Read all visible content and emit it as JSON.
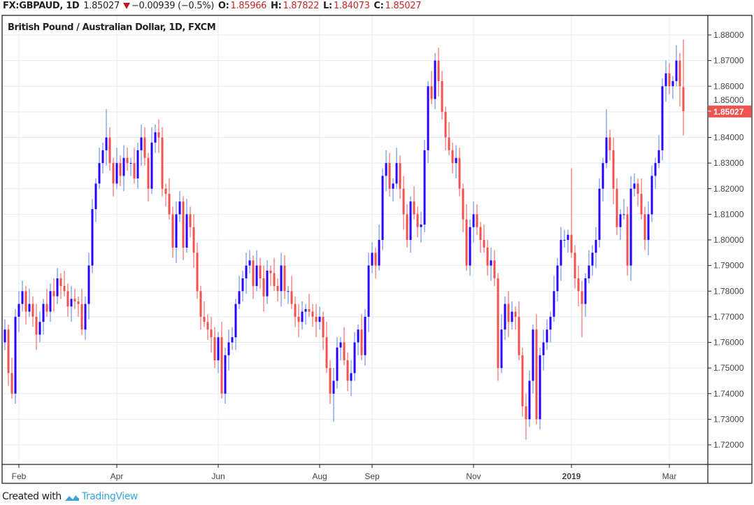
{
  "header": {
    "symbol": "FX:GBPAUD, 1D",
    "last": "1.85027",
    "change": "−0.00939 (−0.5%)",
    "o_label": "O:",
    "o": "1.85966",
    "h_label": "H:",
    "h": "1.87822",
    "l_label": "L:",
    "l": "1.84073",
    "c_label": "C:",
    "c": "1.85027",
    "direction_icon": "triangle-down-icon"
  },
  "footer": {
    "created_with": "Created with",
    "brand": "TradingView",
    "logo_icon": "tradingview-logo-icon"
  },
  "colors": {
    "up_body": "#2a00ff",
    "up_wick": "#4f7fe6",
    "down": "#ef5350",
    "grid": "#e1ecf2",
    "price_tag": "#ef5350"
  },
  "chart_data": {
    "type": "candlestick",
    "title": "British Pound / Australian Dollar, 1D, FXCM",
    "ylim": [
      1.715,
      1.882
    ],
    "y_ticks": [
      "1.72000",
      "1.73000",
      "1.74000",
      "1.75000",
      "1.76000",
      "1.77000",
      "1.78000",
      "1.79000",
      "1.80000",
      "1.81000",
      "1.82000",
      "1.83000",
      "1.84000",
      "1.85000",
      "1.86000",
      "1.87000",
      "1.88000"
    ],
    "x_ticks": [
      {
        "label": "Feb",
        "index": 4
      },
      {
        "label": "Apr",
        "index": 32
      },
      {
        "label": "Jun",
        "index": 61
      },
      {
        "label": "Aug",
        "index": 90
      },
      {
        "label": "Sep",
        "index": 105
      },
      {
        "label": "Nov",
        "index": 134
      },
      {
        "label": "2019",
        "index": 162,
        "bold": true
      },
      {
        "label": "Mar",
        "index": 190
      }
    ],
    "last_price_label": "1.85027",
    "last_price": 1.85027,
    "grid": true,
    "ohlc": [
      [
        1.76,
        1.769,
        1.757,
        1.765
      ],
      [
        1.765,
        1.767,
        1.743,
        1.748
      ],
      [
        1.748,
        1.754,
        1.738,
        1.74
      ],
      [
        1.74,
        1.773,
        1.736,
        1.77
      ],
      [
        1.77,
        1.78,
        1.764,
        1.775
      ],
      [
        1.775,
        1.784,
        1.772,
        1.78
      ],
      [
        1.78,
        1.782,
        1.767,
        1.772
      ],
      [
        1.772,
        1.781,
        1.77,
        1.775
      ],
      [
        1.775,
        1.778,
        1.766,
        1.77
      ],
      [
        1.77,
        1.775,
        1.757,
        1.763
      ],
      [
        1.763,
        1.772,
        1.76,
        1.768
      ],
      [
        1.768,
        1.777,
        1.763,
        1.775
      ],
      [
        1.775,
        1.781,
        1.77,
        1.772
      ],
      [
        1.772,
        1.783,
        1.768,
        1.78
      ],
      [
        1.78,
        1.785,
        1.772,
        1.778
      ],
      [
        1.778,
        1.789,
        1.775,
        1.785
      ],
      [
        1.785,
        1.787,
        1.777,
        1.782
      ],
      [
        1.782,
        1.788,
        1.778,
        1.78
      ],
      [
        1.78,
        1.783,
        1.77,
        1.774
      ],
      [
        1.774,
        1.782,
        1.768,
        1.777
      ],
      [
        1.777,
        1.781,
        1.773,
        1.776
      ],
      [
        1.776,
        1.778,
        1.77,
        1.775
      ],
      [
        1.775,
        1.781,
        1.763,
        1.765
      ],
      [
        1.765,
        1.778,
        1.761,
        1.775
      ],
      [
        1.775,
        1.795,
        1.769,
        1.79
      ],
      [
        1.79,
        1.816,
        1.787,
        1.812
      ],
      [
        1.812,
        1.824,
        1.807,
        1.822
      ],
      [
        1.822,
        1.836,
        1.82,
        1.83
      ],
      [
        1.83,
        1.838,
        1.826,
        1.835
      ],
      [
        1.835,
        1.851,
        1.829,
        1.84
      ],
      [
        1.84,
        1.844,
        1.827,
        1.83
      ],
      [
        1.83,
        1.832,
        1.817,
        1.822
      ],
      [
        1.822,
        1.836,
        1.82,
        1.83
      ],
      [
        1.83,
        1.833,
        1.821,
        1.825
      ],
      [
        1.825,
        1.837,
        1.819,
        1.832
      ],
      [
        1.832,
        1.836,
        1.827,
        1.83
      ],
      [
        1.83,
        1.832,
        1.825,
        1.83
      ],
      [
        1.83,
        1.836,
        1.822,
        1.824
      ],
      [
        1.824,
        1.838,
        1.82,
        1.835
      ],
      [
        1.835,
        1.845,
        1.829,
        1.84
      ],
      [
        1.84,
        1.844,
        1.829,
        1.832
      ],
      [
        1.832,
        1.834,
        1.815,
        1.82
      ],
      [
        1.82,
        1.844,
        1.818,
        1.838
      ],
      [
        1.838,
        1.845,
        1.834,
        1.842
      ],
      [
        1.842,
        1.847,
        1.834,
        1.84
      ],
      [
        1.84,
        1.844,
        1.817,
        1.82
      ],
      [
        1.82,
        1.822,
        1.813,
        1.818
      ],
      [
        1.818,
        1.824,
        1.808,
        1.81
      ],
      [
        1.81,
        1.813,
        1.793,
        1.797
      ],
      [
        1.797,
        1.815,
        1.791,
        1.81
      ],
      [
        1.81,
        1.819,
        1.807,
        1.815
      ],
      [
        1.815,
        1.817,
        1.792,
        1.797
      ],
      [
        1.797,
        1.816,
        1.795,
        1.81
      ],
      [
        1.81,
        1.813,
        1.801,
        1.805
      ],
      [
        1.805,
        1.81,
        1.789,
        1.795
      ],
      [
        1.795,
        1.799,
        1.777,
        1.78
      ],
      [
        1.78,
        1.782,
        1.765,
        1.77
      ],
      [
        1.77,
        1.776,
        1.766,
        1.768
      ],
      [
        1.768,
        1.771,
        1.761,
        1.765
      ],
      [
        1.765,
        1.77,
        1.756,
        1.762
      ],
      [
        1.762,
        1.766,
        1.75,
        1.753
      ],
      [
        1.753,
        1.764,
        1.748,
        1.762
      ],
      [
        1.762,
        1.768,
        1.738,
        1.74
      ],
      [
        1.74,
        1.758,
        1.736,
        1.755
      ],
      [
        1.755,
        1.765,
        1.749,
        1.76
      ],
      [
        1.76,
        1.766,
        1.757,
        1.762
      ],
      [
        1.762,
        1.777,
        1.757,
        1.775
      ],
      [
        1.775,
        1.786,
        1.773,
        1.78
      ],
      [
        1.78,
        1.788,
        1.776,
        1.785
      ],
      [
        1.785,
        1.795,
        1.779,
        1.79
      ],
      [
        1.79,
        1.796,
        1.787,
        1.792
      ],
      [
        1.792,
        1.794,
        1.777,
        1.782
      ],
      [
        1.782,
        1.796,
        1.78,
        1.79
      ],
      [
        1.79,
        1.793,
        1.781,
        1.785
      ],
      [
        1.785,
        1.79,
        1.772,
        1.778
      ],
      [
        1.778,
        1.792,
        1.775,
        1.788
      ],
      [
        1.788,
        1.79,
        1.782,
        1.787
      ],
      [
        1.787,
        1.793,
        1.78,
        1.782
      ],
      [
        1.782,
        1.785,
        1.776,
        1.78
      ],
      [
        1.78,
        1.795,
        1.774,
        1.79
      ],
      [
        1.79,
        1.794,
        1.777,
        1.78
      ],
      [
        1.78,
        1.782,
        1.775,
        1.78
      ],
      [
        1.78,
        1.786,
        1.773,
        1.775
      ],
      [
        1.775,
        1.778,
        1.766,
        1.77
      ],
      [
        1.77,
        1.775,
        1.762,
        1.768
      ],
      [
        1.768,
        1.776,
        1.765,
        1.772
      ],
      [
        1.772,
        1.775,
        1.767,
        1.773
      ],
      [
        1.773,
        1.779,
        1.77,
        1.772
      ],
      [
        1.772,
        1.775,
        1.766,
        1.77
      ],
      [
        1.77,
        1.775,
        1.762,
        1.768
      ],
      [
        1.768,
        1.774,
        1.765,
        1.77
      ],
      [
        1.77,
        1.772,
        1.757,
        1.762
      ],
      [
        1.762,
        1.768,
        1.748,
        1.75
      ],
      [
        1.75,
        1.753,
        1.736,
        1.74
      ],
      [
        1.74,
        1.75,
        1.729,
        1.745
      ],
      [
        1.745,
        1.762,
        1.742,
        1.758
      ],
      [
        1.758,
        1.762,
        1.753,
        1.76
      ],
      [
        1.76,
        1.766,
        1.751,
        1.753
      ],
      [
        1.753,
        1.756,
        1.741,
        1.745
      ],
      [
        1.745,
        1.753,
        1.739,
        1.748
      ],
      [
        1.748,
        1.764,
        1.745,
        1.76
      ],
      [
        1.76,
        1.767,
        1.755,
        1.765
      ],
      [
        1.765,
        1.771,
        1.753,
        1.755
      ],
      [
        1.755,
        1.773,
        1.751,
        1.77
      ],
      [
        1.77,
        1.795,
        1.764,
        1.79
      ],
      [
        1.79,
        1.799,
        1.787,
        1.795
      ],
      [
        1.795,
        1.797,
        1.785,
        1.79
      ],
      [
        1.79,
        1.806,
        1.788,
        1.8
      ],
      [
        1.8,
        1.828,
        1.796,
        1.825
      ],
      [
        1.825,
        1.835,
        1.819,
        1.83
      ],
      [
        1.83,
        1.834,
        1.817,
        1.82
      ],
      [
        1.82,
        1.824,
        1.815,
        1.822
      ],
      [
        1.822,
        1.836,
        1.82,
        1.83
      ],
      [
        1.83,
        1.833,
        1.816,
        1.82
      ],
      [
        1.82,
        1.825,
        1.804,
        1.81
      ],
      [
        1.81,
        1.814,
        1.797,
        1.8
      ],
      [
        1.8,
        1.817,
        1.795,
        1.815
      ],
      [
        1.815,
        1.821,
        1.808,
        1.81
      ],
      [
        1.81,
        1.813,
        1.801,
        1.805
      ],
      [
        1.805,
        1.811,
        1.799,
        1.806
      ],
      [
        1.806,
        1.839,
        1.803,
        1.835
      ],
      [
        1.835,
        1.862,
        1.83,
        1.86
      ],
      [
        1.86,
        1.866,
        1.853,
        1.855
      ],
      [
        1.855,
        1.873,
        1.851,
        1.87
      ],
      [
        1.87,
        1.875,
        1.856,
        1.862
      ],
      [
        1.862,
        1.866,
        1.847,
        1.85
      ],
      [
        1.85,
        1.852,
        1.835,
        1.84
      ],
      [
        1.84,
        1.846,
        1.833,
        1.835
      ],
      [
        1.835,
        1.838,
        1.826,
        1.83
      ],
      [
        1.83,
        1.837,
        1.824,
        1.832
      ],
      [
        1.832,
        1.836,
        1.817,
        1.82
      ],
      [
        1.82,
        1.822,
        1.803,
        1.808
      ],
      [
        1.808,
        1.814,
        1.788,
        1.79
      ],
      [
        1.79,
        1.808,
        1.786,
        1.805
      ],
      [
        1.805,
        1.815,
        1.799,
        1.81
      ],
      [
        1.81,
        1.814,
        1.802,
        1.805
      ],
      [
        1.805,
        1.807,
        1.795,
        1.8
      ],
      [
        1.8,
        1.806,
        1.795,
        1.797
      ],
      [
        1.797,
        1.8,
        1.786,
        1.79
      ],
      [
        1.79,
        1.797,
        1.784,
        1.792
      ],
      [
        1.792,
        1.796,
        1.782,
        1.785
      ],
      [
        1.785,
        1.787,
        1.745,
        1.75
      ],
      [
        1.75,
        1.771,
        1.748,
        1.765
      ],
      [
        1.765,
        1.778,
        1.761,
        1.775
      ],
      [
        1.775,
        1.78,
        1.762,
        1.768
      ],
      [
        1.768,
        1.776,
        1.765,
        1.772
      ],
      [
        1.772,
        1.774,
        1.765,
        1.77
      ],
      [
        1.77,
        1.776,
        1.753,
        1.755
      ],
      [
        1.755,
        1.758,
        1.731,
        1.735
      ],
      [
        1.735,
        1.74,
        1.722,
        1.73
      ],
      [
        1.73,
        1.749,
        1.727,
        1.745
      ],
      [
        1.745,
        1.767,
        1.74,
        1.765
      ],
      [
        1.765,
        1.771,
        1.728,
        1.73
      ],
      [
        1.73,
        1.758,
        1.726,
        1.755
      ],
      [
        1.755,
        1.765,
        1.749,
        1.76
      ],
      [
        1.76,
        1.769,
        1.757,
        1.765
      ],
      [
        1.765,
        1.772,
        1.76,
        1.77
      ],
      [
        1.77,
        1.786,
        1.768,
        1.78
      ],
      [
        1.78,
        1.793,
        1.776,
        1.79
      ],
      [
        1.79,
        1.805,
        1.784,
        1.8
      ],
      [
        1.8,
        1.804,
        1.797,
        1.8
      ],
      [
        1.8,
        1.804,
        1.795,
        1.802
      ],
      [
        1.802,
        1.828,
        1.793,
        1.795
      ],
      [
        1.795,
        1.798,
        1.781,
        1.785
      ],
      [
        1.785,
        1.79,
        1.774,
        1.78
      ],
      [
        1.78,
        1.784,
        1.762,
        1.775
      ],
      [
        1.775,
        1.787,
        1.77,
        1.785
      ],
      [
        1.785,
        1.796,
        1.783,
        1.79
      ],
      [
        1.79,
        1.798,
        1.786,
        1.795
      ],
      [
        1.795,
        1.805,
        1.789,
        1.8
      ],
      [
        1.8,
        1.824,
        1.797,
        1.82
      ],
      [
        1.82,
        1.832,
        1.815,
        1.83
      ],
      [
        1.83,
        1.851,
        1.828,
        1.84
      ],
      [
        1.84,
        1.843,
        1.831,
        1.835
      ],
      [
        1.835,
        1.84,
        1.814,
        1.82
      ],
      [
        1.82,
        1.824,
        1.802,
        1.805
      ],
      [
        1.805,
        1.812,
        1.8,
        1.81
      ],
      [
        1.81,
        1.816,
        1.808,
        1.81
      ],
      [
        1.81,
        1.813,
        1.786,
        1.79
      ],
      [
        1.79,
        1.825,
        1.784,
        1.82
      ],
      [
        1.82,
        1.826,
        1.817,
        1.822
      ],
      [
        1.822,
        1.824,
        1.813,
        1.818
      ],
      [
        1.818,
        1.824,
        1.808,
        1.81
      ],
      [
        1.81,
        1.813,
        1.796,
        1.8
      ],
      [
        1.8,
        1.815,
        1.794,
        1.81
      ],
      [
        1.81,
        1.829,
        1.807,
        1.825
      ],
      [
        1.825,
        1.832,
        1.82,
        1.83
      ],
      [
        1.83,
        1.841,
        1.828,
        1.835
      ],
      [
        1.835,
        1.863,
        1.831,
        1.86
      ],
      [
        1.86,
        1.87,
        1.854,
        1.865
      ],
      [
        1.865,
        1.869,
        1.857,
        1.86
      ],
      [
        1.86,
        1.864,
        1.855,
        1.862
      ],
      [
        1.862,
        1.876,
        1.86,
        1.87
      ],
      [
        1.87,
        1.873,
        1.852,
        1.86
      ],
      [
        1.85966,
        1.87822,
        1.84073,
        1.85027
      ]
    ]
  }
}
